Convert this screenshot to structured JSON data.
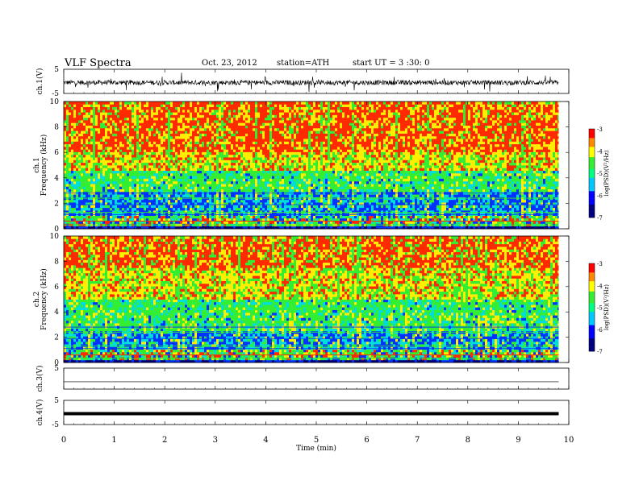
{
  "header": {
    "title": "VLF Spectra",
    "date": "Oct. 23, 2012",
    "station": "station=ATH",
    "start": "start  UT =   3  :30: 0"
  },
  "chart_data": [
    {
      "type": "line",
      "panel": "ch1-waveform",
      "ylabel": "ch.1(V)",
      "ylim": [
        -5,
        5
      ],
      "yticks": [
        "5",
        "-5"
      ],
      "x": [
        0,
        1,
        2,
        3,
        4,
        5,
        6,
        7,
        8,
        9,
        9.8
      ],
      "y_mean": -0.5,
      "y_noise_amplitude": 1.0,
      "color": "#000000"
    },
    {
      "type": "heatmap",
      "panel": "ch1-spectrogram",
      "ylabel": "ch.1 Frequency (kHz)",
      "ylim": [
        0,
        10
      ],
      "yticks": [
        "0",
        "2",
        "4",
        "6",
        "8",
        "10"
      ],
      "xlim": [
        0,
        9.8
      ],
      "colorbar": {
        "label": "log(PSD)(V²/Hz)",
        "range": [
          -7,
          -3
        ],
        "ticks": [
          "-3",
          "-4",
          "-5",
          "-6",
          "-7"
        ]
      },
      "profile": {
        "red_above_khz": 6.0,
        "yellow_band_khz": [
          4.5,
          6.0
        ],
        "green_band_khz": [
          3.0,
          4.5
        ],
        "blue_band_khz": [
          1.0,
          3.0
        ]
      }
    },
    {
      "type": "heatmap",
      "panel": "ch2-spectrogram",
      "ylabel": "ch.2 Frequency (kHz)",
      "ylim": [
        0,
        10
      ],
      "yticks": [
        "0",
        "2",
        "4",
        "6",
        "8",
        "10"
      ],
      "xlim": [
        0,
        9.8
      ],
      "colorbar": {
        "label": "log(PSD)(V²/Hz)",
        "range": [
          -7,
          -3
        ],
        "ticks": [
          "-3",
          "-4",
          "-5",
          "-6",
          "-7"
        ]
      },
      "profile": {
        "red_above_khz": 7.5,
        "yellow_band_khz": [
          5.0,
          7.5
        ],
        "green_band_khz": [
          2.5,
          5.0
        ],
        "blue_band_khz": [
          1.0,
          2.5
        ]
      }
    },
    {
      "type": "line",
      "panel": "ch3-waveform",
      "ylabel": "ch.3(V)",
      "ylim": [
        -5,
        5
      ],
      "yticks": [
        "5"
      ],
      "x": [
        0,
        9.8
      ],
      "y": [
        -1.5,
        -1.5
      ],
      "color": "#000000"
    },
    {
      "type": "line",
      "panel": "ch4-waveform",
      "ylabel": "ch.4(V)",
      "ylim": [
        -5,
        5
      ],
      "yticks": [
        "5",
        "-5"
      ],
      "x": [
        0,
        9.8
      ],
      "y": [
        -0.5,
        -0.5
      ],
      "color": "#000000"
    }
  ],
  "xaxis": {
    "label": "Time  (min)",
    "ticks": [
      "0",
      "1",
      "2",
      "3",
      "4",
      "5",
      "6",
      "7",
      "8",
      "9",
      "10"
    ],
    "range": [
      0,
      10
    ]
  },
  "colors": {
    "red": "#ff2a00",
    "yellow": "#ffee00",
    "green": "#33ee33",
    "cyan": "#00dddd",
    "blue": "#0033ff",
    "navy": "#000080"
  }
}
